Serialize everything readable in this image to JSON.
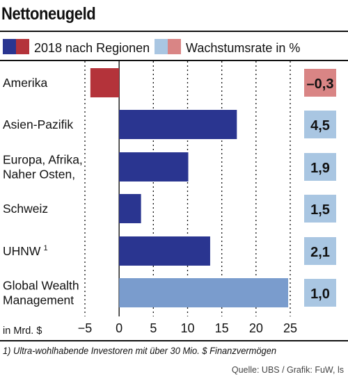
{
  "title": "Nettoneugeld",
  "colors": {
    "bar_dark_blue": "#2a3590",
    "bar_dark_red": "#b4333a",
    "bar_light_blue": "#7a9ccd",
    "rate_light_blue": "#a9c6e2",
    "rate_light_red": "#d98585"
  },
  "chart_data": {
    "type": "bar",
    "orientation": "horizontal",
    "legend": [
      {
        "label": "2018 nach Regionen",
        "swatches": [
          "#2a3590",
          "#b4333a"
        ]
      },
      {
        "label": "Wachstumsrate in %",
        "swatches": [
          "#a9c6e2",
          "#d98585"
        ]
      }
    ],
    "categories": [
      "Amerika",
      "Asien-Pazifik",
      "Europa, Afrika, Naher Osten,",
      "Schweiz",
      "UHNW",
      "Global Wealth Management"
    ],
    "category_lines": [
      [
        "Amerika"
      ],
      [
        "Asien-Pazifik"
      ],
      [
        "Europa, Afrika,",
        "Naher Osten,"
      ],
      [
        "Schweiz"
      ],
      [
        "UHNW"
      ],
      [
        "Global Wealth",
        "Management"
      ]
    ],
    "category_superscripts": [
      "",
      "",
      "",
      "",
      "1",
      ""
    ],
    "values": [
      -4.2,
      17.2,
      10.1,
      3.2,
      13.3,
      24.7
    ],
    "bar_colors": [
      "#b4333a",
      "#2a3590",
      "#2a3590",
      "#2a3590",
      "#2a3590",
      "#7a9ccd"
    ],
    "growth_rates": [
      "–0,3",
      "4,5",
      "1,9",
      "1,5",
      "2,1",
      "1,0"
    ],
    "growth_colors": [
      "#d98585",
      "#a9c6e2",
      "#a9c6e2",
      "#a9c6e2",
      "#a9c6e2",
      "#a9c6e2"
    ],
    "xlabel": "in Mrd. $",
    "xlim": [
      -5,
      25
    ],
    "xticks": [
      -5,
      0,
      5,
      10,
      15,
      20,
      25
    ],
    "xtick_labels": [
      "−5",
      "0",
      "5",
      "10",
      "15",
      "20",
      "25"
    ],
    "grid": "dotted vertical"
  },
  "footnote": "1) Ultra-wohlhabende Investoren mit über 30 Mio. $ Finanzvermögen",
  "source": "Quelle: UBS / Grafik: FuW, ls"
}
